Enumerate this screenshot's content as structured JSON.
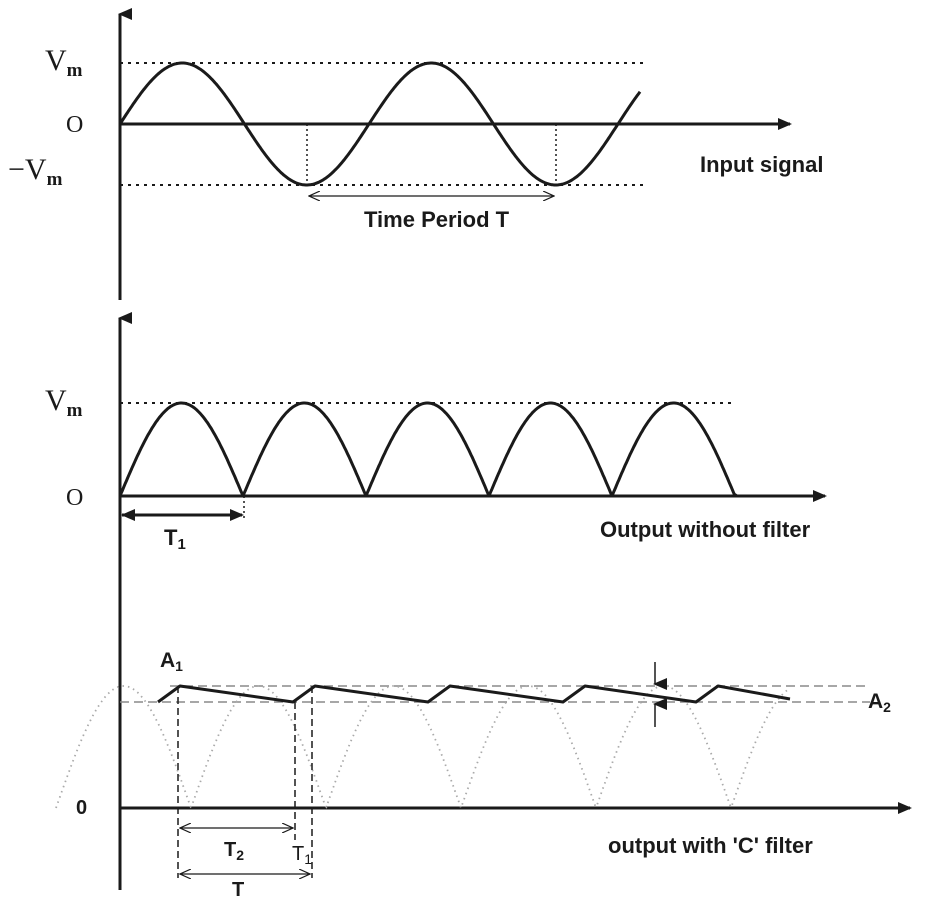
{
  "panels": {
    "input": {
      "label": "Input signal",
      "vmax_label": "V",
      "vmax_sub": "m",
      "vmin_label": "−V",
      "vmin_sub": "m",
      "zero_label": "O",
      "period_label": "Time Period T"
    },
    "no_filter": {
      "label": "Output without filter",
      "vmax_label": "V",
      "vmax_sub": "m",
      "zero_label": "O",
      "t1_label": "T",
      "t1_sub": "1"
    },
    "c_filter": {
      "label": "output with 'C' filter",
      "zero_label": "0",
      "a1_label": "A",
      "a1_sub": "1",
      "a2_label": "A",
      "a2_sub": "2",
      "t2_label": "T",
      "t2_sub": "2",
      "t1_label": "T",
      "t1_sub": "1",
      "t_label": "T"
    }
  },
  "colors": {
    "line": "#1a1a1a",
    "dashed_guide": "#8a8a8a",
    "dotted_wave": "#aaaaaa"
  }
}
